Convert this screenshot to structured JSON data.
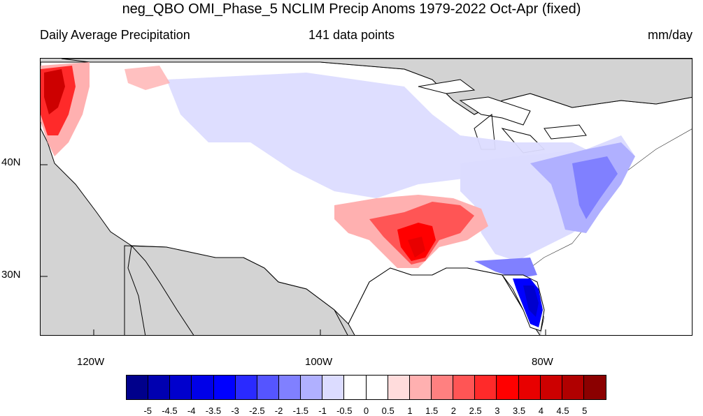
{
  "header": {
    "title": "neg_QBO OMI_Phase_5 NCLIM Precip Anoms 1979-2022 Oct-Apr (fixed)",
    "left_label": "Daily Average Precipitation",
    "center_label": "141 data points",
    "right_label": "mm/day"
  },
  "axes": {
    "lat_labels": [
      "40N",
      "30N"
    ],
    "lon_labels": [
      "120W",
      "100W",
      "80W"
    ]
  },
  "colorbar": {
    "colors": [
      "#00008b",
      "#0000b0",
      "#0000cd",
      "#0000e8",
      "#0000ff",
      "#2a2aff",
      "#5555ff",
      "#8080ff",
      "#b0b0ff",
      "#dcdcff",
      "#ffffff",
      "#ffffff",
      "#ffdcdc",
      "#ffb0b0",
      "#ff8080",
      "#ff5555",
      "#ff2a2a",
      "#ff0000",
      "#e80000",
      "#cd0000",
      "#b00000",
      "#8b0000"
    ],
    "labels": [
      "-5",
      "-4.5",
      "-4",
      "-3.5",
      "-3",
      "-2.5",
      "-2",
      "-1.5",
      "-1",
      "-0.5",
      "0",
      "0.5",
      "1",
      "1.5",
      "2",
      "2.5",
      "3",
      "3.5",
      "4",
      "4.5",
      "5"
    ]
  }
}
